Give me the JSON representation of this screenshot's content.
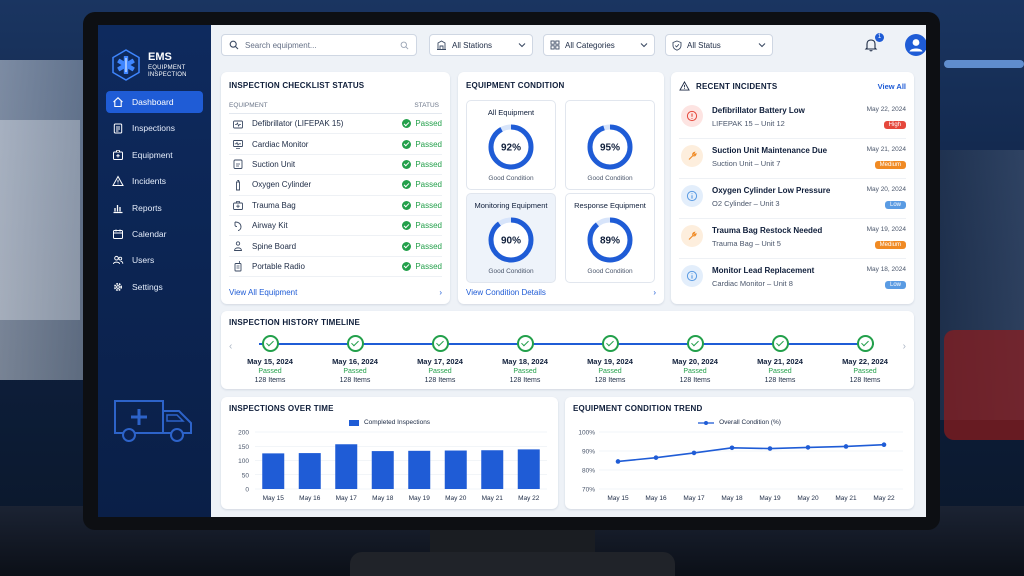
{
  "brand": {
    "name": "EMS",
    "subtitle_line1": "EQUIPMENT",
    "subtitle_line2": "INSPECTION"
  },
  "sidebar": {
    "items": [
      {
        "label": "Dashboard",
        "icon": "home-icon",
        "active": true
      },
      {
        "label": "Inspections",
        "icon": "clipboard-icon"
      },
      {
        "label": "Equipment",
        "icon": "medical-box-icon"
      },
      {
        "label": "Incidents",
        "icon": "warning-icon"
      },
      {
        "label": "Reports",
        "icon": "bar-chart-icon"
      },
      {
        "label": "Calendar",
        "icon": "calendar-icon"
      },
      {
        "label": "Users",
        "icon": "users-icon"
      },
      {
        "label": "Settings",
        "icon": "gear-icon"
      }
    ]
  },
  "topbar": {
    "search_placeholder": "Search equipment...",
    "stations": "All Stations",
    "categories": "All Categories",
    "status": "All Status",
    "notifications": "1"
  },
  "checklist": {
    "title": "INSPECTION CHECKLIST STATUS",
    "col_equipment": "EQUIPMENT",
    "col_status": "STATUS",
    "rows": [
      {
        "name": "Defibrillator (LIFEPAK 15)",
        "status": "Passed",
        "icon": "defibrillator-icon"
      },
      {
        "name": "Cardiac Monitor",
        "status": "Passed",
        "icon": "monitor-icon"
      },
      {
        "name": "Suction Unit",
        "status": "Passed",
        "icon": "suction-icon"
      },
      {
        "name": "Oxygen Cylinder",
        "status": "Passed",
        "icon": "oxygen-icon"
      },
      {
        "name": "Trauma Bag",
        "status": "Passed",
        "icon": "bag-icon"
      },
      {
        "name": "Airway Kit",
        "status": "Passed",
        "icon": "airway-icon"
      },
      {
        "name": "Spine Board",
        "status": "Passed",
        "icon": "person-icon"
      },
      {
        "name": "Portable Radio",
        "status": "Passed",
        "icon": "radio-icon"
      }
    ],
    "link": "View All Equipment"
  },
  "condition": {
    "title": "EQUIPMENT CONDITION",
    "gauges": [
      {
        "label": "All Equipment",
        "value": 92,
        "display": "92%",
        "sub": "Good Condition",
        "shaded": false
      },
      {
        "label": "",
        "value": 95,
        "display": "95%",
        "sub": "Good Condition",
        "shaded": false
      },
      {
        "label": "Monitoring Equipment",
        "value": 90,
        "display": "90%",
        "sub": "Good Condition",
        "shaded": true
      },
      {
        "label": "Response Equipment",
        "value": 89,
        "display": "89%",
        "sub": "Good Condition",
        "shaded": false
      }
    ],
    "link": "View Condition Details"
  },
  "incidents": {
    "title": "RECENT INCIDENTS",
    "view_all": "View All",
    "items": [
      {
        "title": "Defibrillator Battery Low",
        "sub": "LIFEPAK 15 – Unit 12",
        "date": "May 22, 2024",
        "level": "High",
        "icon": "alert-icon",
        "color": "#e5483c",
        "tint": "#fde4e2"
      },
      {
        "title": "Suction Unit Maintenance Due",
        "sub": "Suction Unit – Unit 7",
        "date": "May 21, 2024",
        "level": "Medium",
        "icon": "wrench-icon",
        "color": "#f08a24",
        "tint": "#fdeedd"
      },
      {
        "title": "Oxygen Cylinder Low Pressure",
        "sub": "O2 Cylinder – Unit 3",
        "date": "May 20, 2024",
        "level": "Low",
        "icon": "info-icon",
        "color": "#5a9be3",
        "tint": "#e3eefb"
      },
      {
        "title": "Trauma Bag Restock Needed",
        "sub": "Trauma Bag – Unit 5",
        "date": "May 19, 2024",
        "level": "Medium",
        "icon": "wrench-icon",
        "color": "#f08a24",
        "tint": "#fdeedd"
      },
      {
        "title": "Monitor Lead Replacement",
        "sub": "Cardiac Monitor – Unit 8",
        "date": "May 18, 2024",
        "level": "Low",
        "icon": "info-icon",
        "color": "#5a9be3",
        "tint": "#e3eefb"
      }
    ]
  },
  "timeline": {
    "title": "INSPECTION HISTORY TIMELINE",
    "entries": [
      {
        "date": "May 15, 2024",
        "status": "Passed",
        "items": "128 Items"
      },
      {
        "date": "May 16, 2024",
        "status": "Passed",
        "items": "128 Items"
      },
      {
        "date": "May 17, 2024",
        "status": "Passed",
        "items": "128 Items"
      },
      {
        "date": "May 18, 2024",
        "status": "Passed",
        "items": "128 Items"
      },
      {
        "date": "May 19, 2024",
        "status": "Passed",
        "items": "128 Items"
      },
      {
        "date": "May 20, 2024",
        "status": "Passed",
        "items": "128 Items"
      },
      {
        "date": "May 21, 2024",
        "status": "Passed",
        "items": "128 Items"
      },
      {
        "date": "May 22, 2024",
        "status": "Passed",
        "items": "128 Items"
      }
    ]
  },
  "charts": {
    "title_bar": "INSPECTIONS OVER TIME",
    "title_line": "EQUIPMENT CONDITION TREND"
  },
  "chart_data": [
    {
      "type": "bar",
      "title": "INSPECTIONS OVER TIME",
      "categories": [
        "May 15",
        "May 16",
        "May 17",
        "May 18",
        "May 19",
        "May 20",
        "May 21",
        "May 22"
      ],
      "series": [
        {
          "name": "Completed Inspections",
          "values": [
            125,
            126,
            157,
            133,
            134,
            135,
            136,
            139
          ]
        }
      ],
      "ylim": [
        0,
        200
      ],
      "yticks": [
        0,
        50,
        100,
        150,
        200
      ],
      "color": "#1f5cd6"
    },
    {
      "type": "line",
      "title": "EQUIPMENT CONDITION TREND",
      "categories": [
        "May 15",
        "May 16",
        "May 17",
        "May 18",
        "May 19",
        "May 20",
        "May 21",
        "May 22"
      ],
      "series": [
        {
          "name": "Overall Condition (%)",
          "values": [
            84.5,
            86.5,
            89,
            91.7,
            91.3,
            91.9,
            92.4,
            93.3
          ]
        }
      ],
      "ylim": [
        70,
        100
      ],
      "yticks": [
        "70%",
        "80%",
        "90%",
        "100%"
      ],
      "color": "#1f5cd6"
    }
  ]
}
